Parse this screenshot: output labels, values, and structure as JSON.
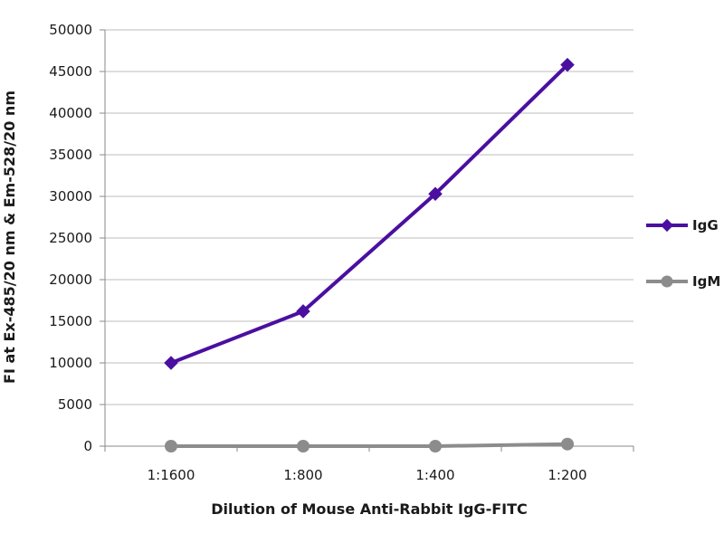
{
  "chart_data": {
    "type": "line",
    "title": "",
    "xlabel": "Dilution of Mouse Anti-Rabbit IgG-FITC",
    "ylabel": "FI at Ex-485/20 nm & Em-528/20 nm",
    "categories": [
      "1:1600",
      "1:800",
      "1:400",
      "1:200"
    ],
    "ylim": [
      0,
      50000
    ],
    "yticks": [
      0,
      5000,
      10000,
      15000,
      20000,
      25000,
      30000,
      35000,
      40000,
      45000,
      50000
    ],
    "grid": true,
    "legend_position": "right",
    "series": [
      {
        "name": "IgG",
        "values": [
          10000,
          16200,
          30300,
          45800
        ],
        "color": "#4a0fa0",
        "marker": "diamond"
      },
      {
        "name": "IgM",
        "values": [
          0,
          0,
          0,
          250
        ],
        "color": "#8c8c8c",
        "marker": "circle"
      }
    ]
  }
}
